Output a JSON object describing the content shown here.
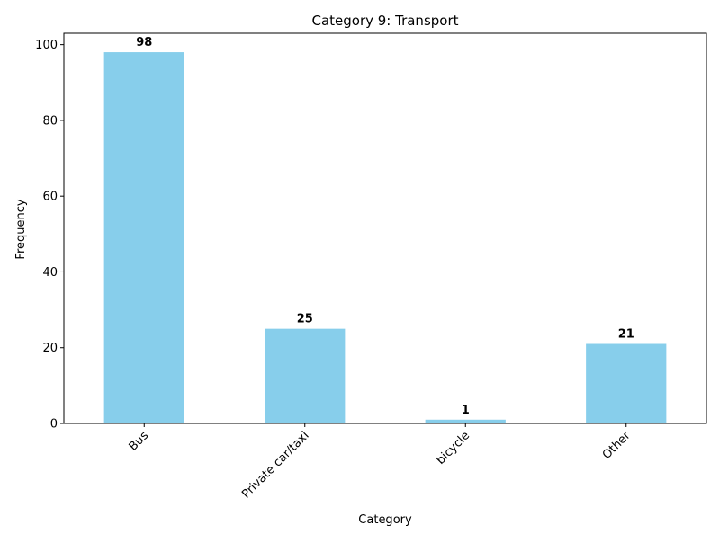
{
  "chart_data": {
    "type": "bar",
    "title": "Category 9: Transport",
    "xlabel": "Category",
    "ylabel": "Frequency",
    "categories": [
      "Bus",
      "Private car/taxi",
      "bicycle",
      "Other"
    ],
    "values": [
      98,
      25,
      1,
      21
    ],
    "data_labels": [
      "98",
      "25",
      "1",
      "21"
    ],
    "ylim": [
      0,
      103
    ],
    "yticks": [
      0,
      20,
      40,
      60,
      80,
      100
    ],
    "ytick_labels": [
      "0",
      "20",
      "40",
      "60",
      "80",
      "100"
    ],
    "grid": false,
    "legend": "none",
    "bar_color": "#87CEEB",
    "xtick_rotation_deg": 45
  }
}
